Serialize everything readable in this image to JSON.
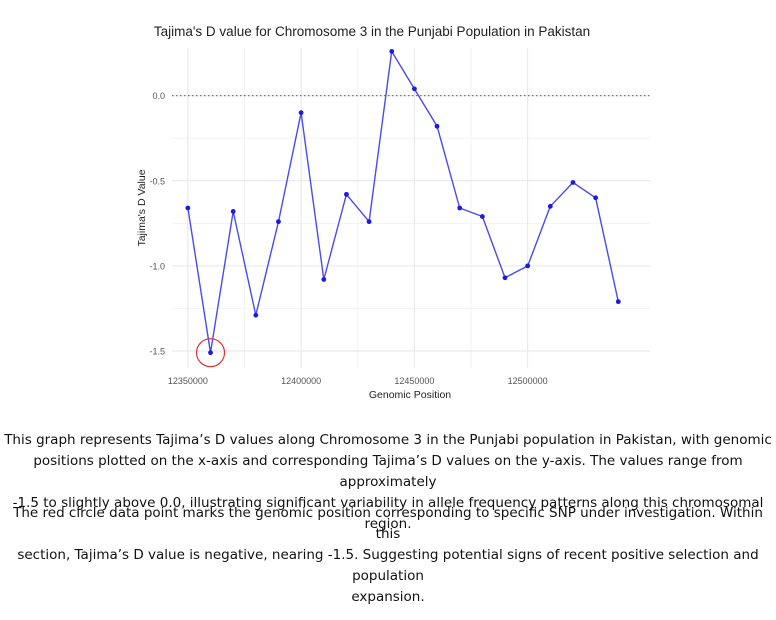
{
  "chart_data": {
    "type": "line",
    "title": "Tajima's D value for Chromosome 3 in the Punjabi Population in Pakistan",
    "xlabel": "Genomic Position",
    "ylabel": "Tajima's D Value",
    "xlim": [
      12343000,
      12554000
    ],
    "ylim": [
      -1.6,
      0.28
    ],
    "x_ticks": [
      12350000,
      12400000,
      12450000,
      12500000
    ],
    "x_tick_labels": [
      "12350000",
      "12400000",
      "12450000",
      "12500000"
    ],
    "y_ticks": [
      0.0,
      -0.5,
      -1.0,
      -1.5
    ],
    "y_tick_labels": [
      "0.0",
      "-0.5",
      "-1.0",
      "-1.5"
    ],
    "reference_line": {
      "y": 0.0,
      "style": "dotted"
    },
    "grid": true,
    "series": [
      {
        "color": "#4a4af0",
        "x": [
          12350000,
          12360000,
          12370000,
          12380000,
          12390000,
          12400000,
          12410000,
          12420000,
          12430000,
          12440000,
          12450000,
          12460000,
          12470000,
          12480000,
          12490000,
          12500000,
          12510000,
          12520000,
          12530000,
          12540000
        ],
        "y": [
          -0.66,
          -1.51,
          -0.68,
          -1.29,
          -0.74,
          -0.1,
          -1.08,
          -0.58,
          -0.74,
          0.26,
          0.04,
          -0.18,
          -0.66,
          -0.71,
          -1.07,
          -1.0,
          -0.65,
          -0.51,
          -0.6,
          -1.21
        ]
      }
    ],
    "highlight": {
      "x": 12360000,
      "y": -1.51,
      "color": "#e03030",
      "shape": "circle"
    }
  },
  "caption": {
    "paragraph_1_lines": [
      "This graph represents Tajima’s D values along Chromosome 3 in the Punjabi population in Pakistan, with genomic",
      "positions plotted on the x-axis and corresponding Tajima’s D values on the y-axis. The values range from approximately",
      "-1.5 to slightly above 0.0, illustrating significant variability in allele frequency patterns along this chromosomal region."
    ],
    "paragraph_2_lines": [
      "The red circle data point marks the genomic position corresponding to specific SNP under investigation. Within this",
      "section, Tajima’s D value is negative, nearing -1.5. Suggesting potential signs of recent positive selection and population",
      "expansion."
    ]
  }
}
